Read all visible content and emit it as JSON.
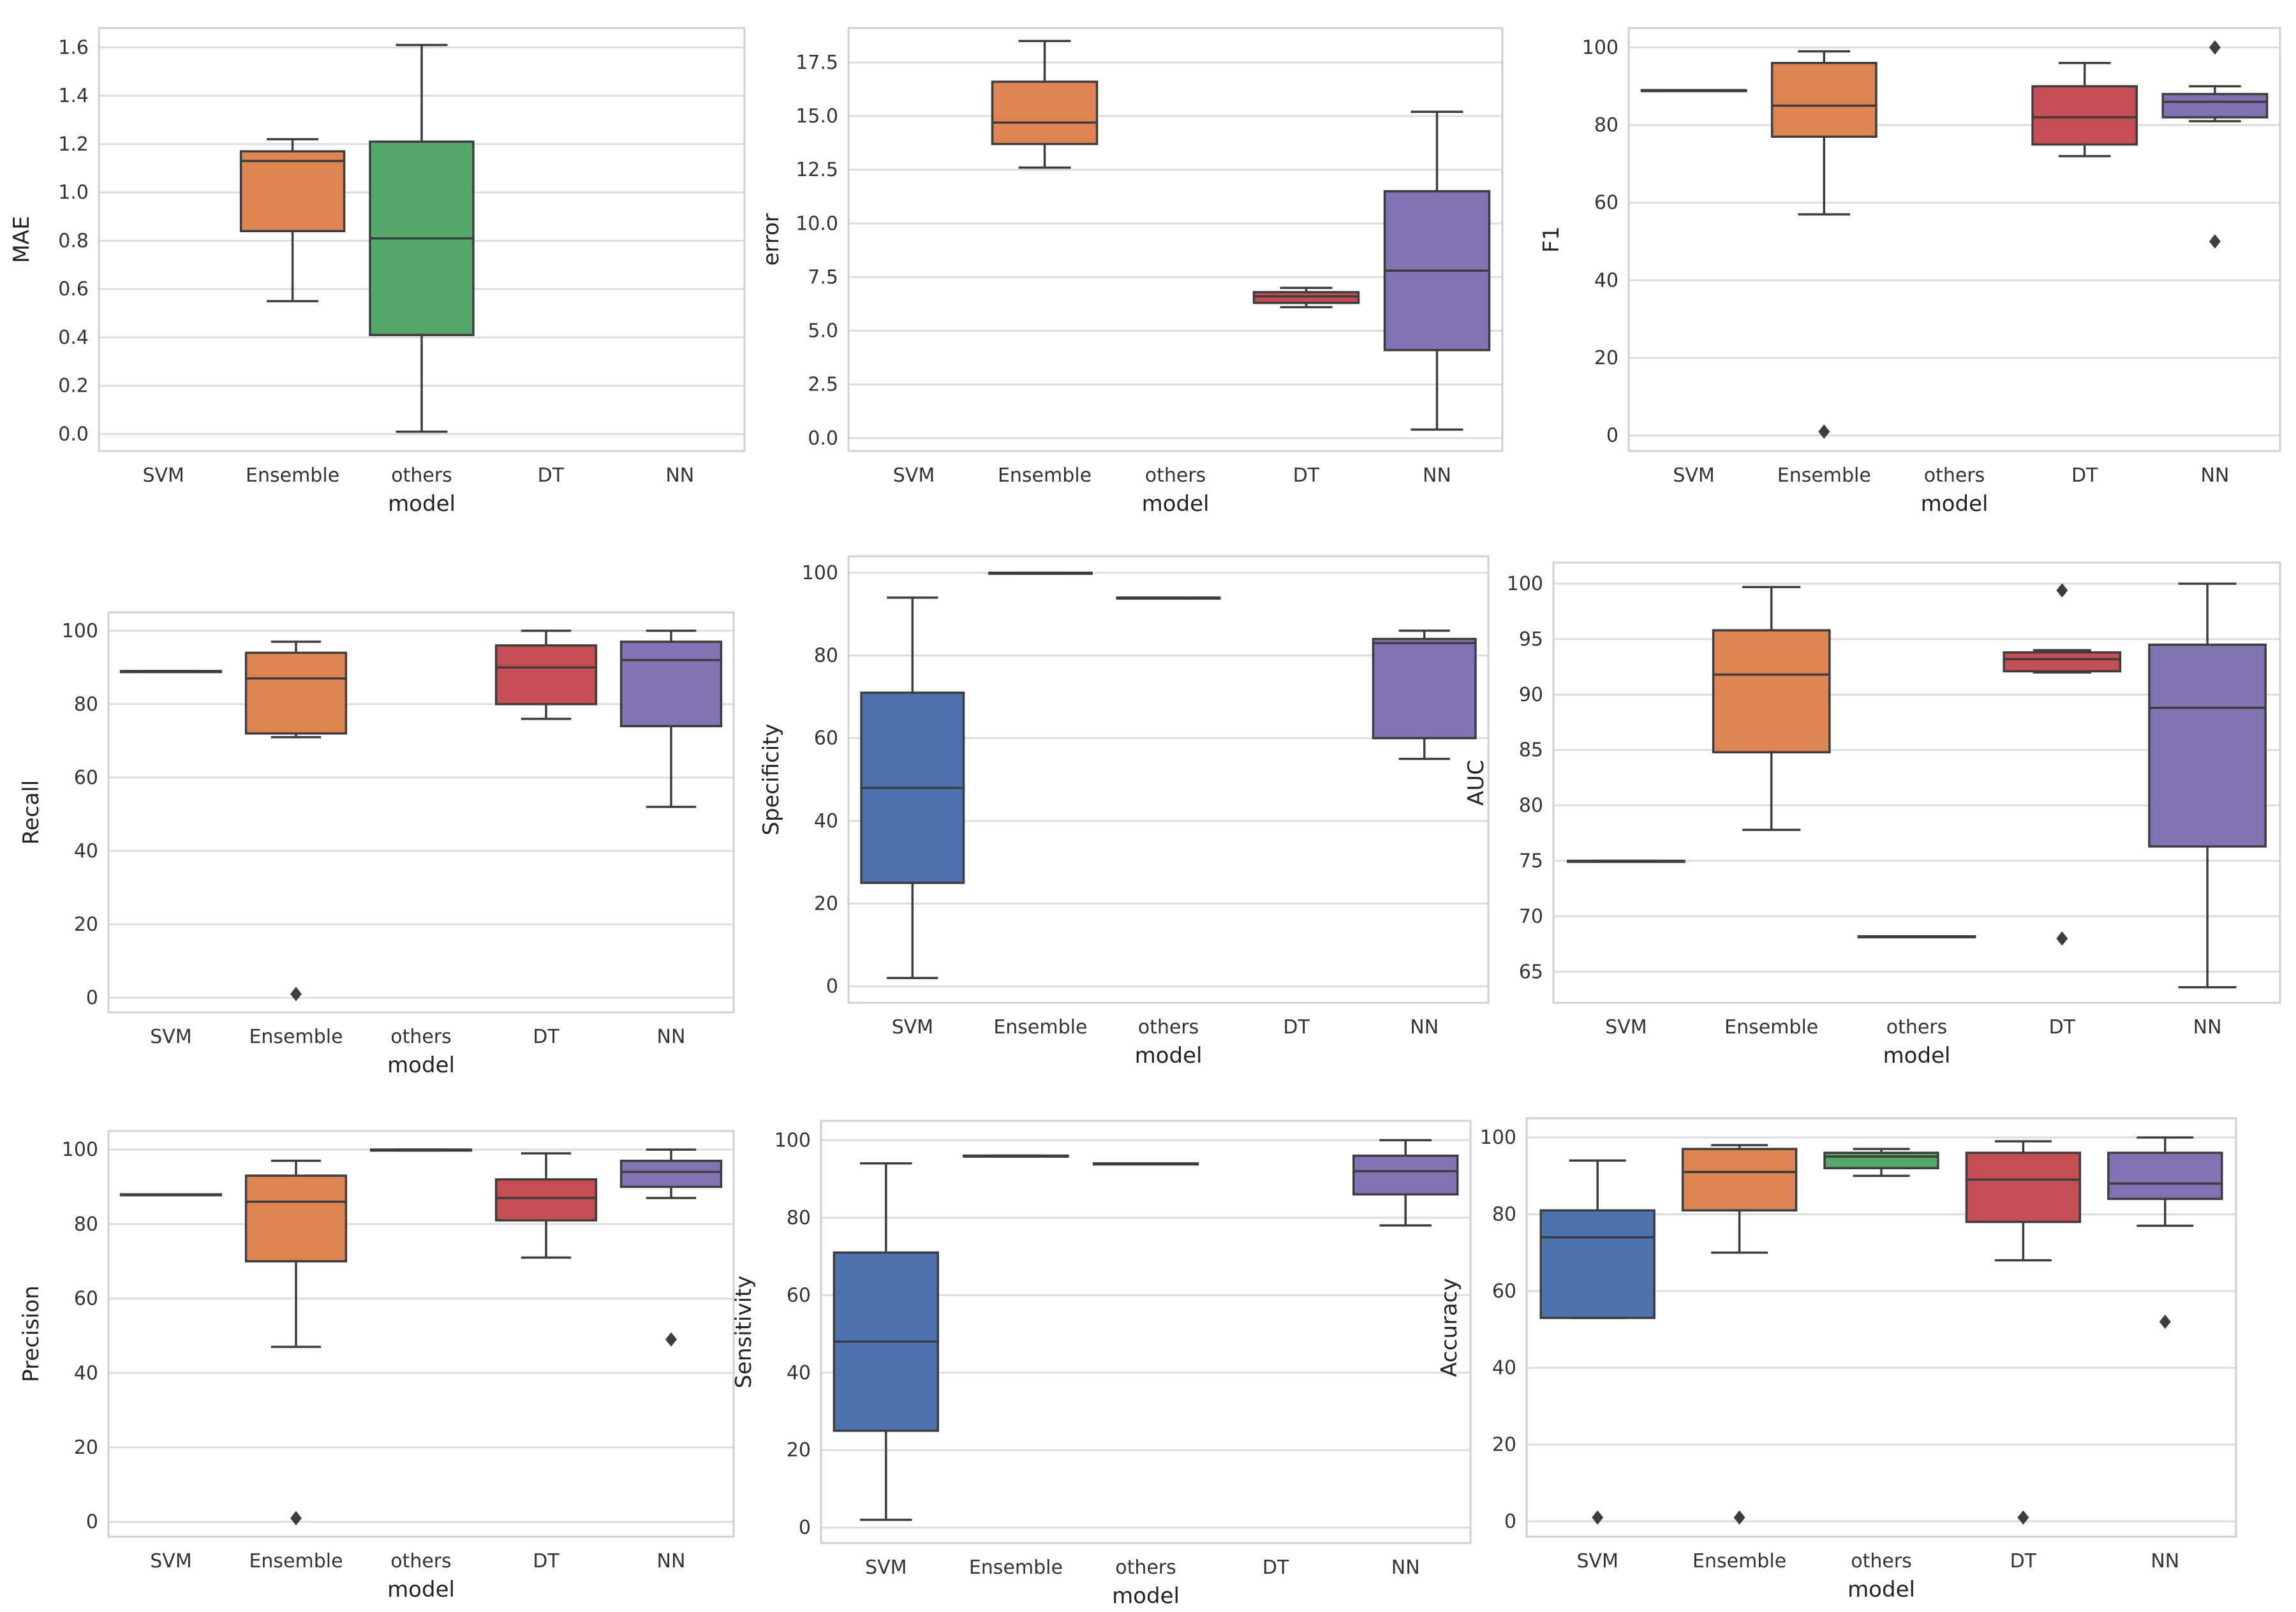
{
  "chart_data": [
    {
      "type": "box",
      "ylabel": "MAE",
      "xlabel": "model",
      "categories": [
        "SVM",
        "Ensemble",
        "others",
        "DT",
        "NN"
      ],
      "ylim": [
        -0.07,
        1.68
      ],
      "yticks": [
        0.0,
        0.2,
        0.4,
        0.6,
        0.8,
        1.0,
        1.2,
        1.4,
        1.6
      ],
      "tick_decimals": 1,
      "grid": true,
      "boxes": [
        {
          "category": "Ensemble",
          "color": "#dd8452",
          "min": 0.55,
          "q1": 0.84,
          "median": 1.13,
          "q3": 1.17,
          "max": 1.22,
          "outliers": []
        },
        {
          "category": "others",
          "color": "#55a868",
          "min": 0.01,
          "q1": 0.41,
          "median": 0.81,
          "q3": 1.21,
          "max": 1.61,
          "outliers": []
        }
      ]
    },
    {
      "type": "box",
      "ylabel": "error",
      "xlabel": "model",
      "categories": [
        "SVM",
        "Ensemble",
        "others",
        "DT",
        "NN"
      ],
      "ylim": [
        -0.6,
        19.1
      ],
      "yticks": [
        0.0,
        2.5,
        5.0,
        7.5,
        10.0,
        12.5,
        15.0,
        17.5
      ],
      "tick_decimals": 1,
      "grid": true,
      "boxes": [
        {
          "category": "Ensemble",
          "color": "#dd8452",
          "min": 12.6,
          "q1": 13.7,
          "median": 14.7,
          "q3": 16.6,
          "max": 18.5,
          "outliers": []
        },
        {
          "category": "DT",
          "color": "#c44e52",
          "min": 6.1,
          "q1": 6.3,
          "median": 6.6,
          "q3": 6.8,
          "max": 7.0,
          "outliers": []
        },
        {
          "category": "NN",
          "color": "#8172b3",
          "min": 0.4,
          "q1": 4.1,
          "median": 7.8,
          "q3": 11.5,
          "max": 15.2,
          "outliers": []
        }
      ]
    },
    {
      "type": "box",
      "ylabel": "F1",
      "xlabel": "model",
      "categories": [
        "SVM",
        "Ensemble",
        "others",
        "DT",
        "NN"
      ],
      "ylim": [
        -4,
        105
      ],
      "yticks": [
        0,
        20,
        40,
        60,
        80,
        100
      ],
      "tick_decimals": 0,
      "grid": true,
      "boxes": [
        {
          "category": "SVM",
          "color": "#4c72b0",
          "min": 89,
          "q1": 89,
          "median": 89,
          "q3": 89,
          "max": 89,
          "outliers": []
        },
        {
          "category": "Ensemble",
          "color": "#dd8452",
          "min": 57,
          "q1": 77,
          "median": 85,
          "q3": 96,
          "max": 99,
          "outliers": [
            1
          ]
        },
        {
          "category": "DT",
          "color": "#c44e52",
          "min": 72,
          "q1": 75,
          "median": 82,
          "q3": 90,
          "max": 96,
          "outliers": []
        },
        {
          "category": "NN",
          "color": "#8172b3",
          "min": 81,
          "q1": 82,
          "median": 86,
          "q3": 88,
          "max": 90,
          "outliers": [
            100,
            50
          ]
        }
      ]
    },
    {
      "type": "box",
      "ylabel": "Recall",
      "xlabel": "model",
      "categories": [
        "SVM",
        "Ensemble",
        "others",
        "DT",
        "NN"
      ],
      "ylim": [
        -4,
        105
      ],
      "yticks": [
        0,
        20,
        40,
        60,
        80,
        100
      ],
      "tick_decimals": 0,
      "grid": true,
      "boxes": [
        {
          "category": "SVM",
          "color": "#4c72b0",
          "min": 89,
          "q1": 89,
          "median": 89,
          "q3": 89,
          "max": 89,
          "outliers": []
        },
        {
          "category": "Ensemble",
          "color": "#dd8452",
          "min": 71,
          "q1": 72,
          "median": 87,
          "q3": 94,
          "max": 97,
          "outliers": [
            1
          ]
        },
        {
          "category": "DT",
          "color": "#c44e52",
          "min": 76,
          "q1": 80,
          "median": 90,
          "q3": 96,
          "max": 100,
          "outliers": []
        },
        {
          "category": "NN",
          "color": "#8172b3",
          "min": 52,
          "q1": 74,
          "median": 92,
          "q3": 97,
          "max": 100,
          "outliers": []
        }
      ]
    },
    {
      "type": "box",
      "ylabel": "Specificity",
      "xlabel": "model",
      "categories": [
        "SVM",
        "Ensemble",
        "others",
        "DT",
        "NN"
      ],
      "ylim": [
        -4,
        104
      ],
      "yticks": [
        0,
        20,
        40,
        60,
        80,
        100
      ],
      "tick_decimals": 0,
      "grid": true,
      "boxes": [
        {
          "category": "SVM",
          "color": "#4c72b0",
          "min": 2,
          "q1": 25,
          "median": 48,
          "q3": 71,
          "max": 94,
          "outliers": []
        },
        {
          "category": "Ensemble",
          "color": "#dd8452",
          "min": 100,
          "q1": 100,
          "median": 100,
          "q3": 100,
          "max": 100,
          "outliers": []
        },
        {
          "category": "others",
          "color": "#55a868",
          "min": 94,
          "q1": 94,
          "median": 94,
          "q3": 94,
          "max": 94,
          "outliers": []
        },
        {
          "category": "NN",
          "color": "#8172b3",
          "min": 55,
          "q1": 60,
          "median": 83,
          "q3": 84,
          "max": 86,
          "outliers": []
        }
      ]
    },
    {
      "type": "box",
      "ylabel": "AUC",
      "xlabel": "model",
      "categories": [
        "SVM",
        "Ensemble",
        "others",
        "DT",
        "NN"
      ],
      "ylim": [
        62.2,
        101.9
      ],
      "yticks": [
        65,
        70,
        75,
        80,
        85,
        90,
        95,
        100
      ],
      "tick_decimals": 0,
      "grid": true,
      "boxes": [
        {
          "category": "SVM",
          "color": "#4c72b0",
          "min": 75,
          "q1": 75,
          "median": 75,
          "q3": 75,
          "max": 75,
          "outliers": []
        },
        {
          "category": "Ensemble",
          "color": "#dd8452",
          "min": 77.8,
          "q1": 84.8,
          "median": 91.8,
          "q3": 95.8,
          "max": 99.7,
          "outliers": []
        },
        {
          "category": "others",
          "color": "#55a868",
          "min": 68.2,
          "q1": 68.2,
          "median": 68.2,
          "q3": 68.2,
          "max": 68.2,
          "outliers": []
        },
        {
          "category": "DT",
          "color": "#c44e52",
          "min": 92,
          "q1": 92.1,
          "median": 93.2,
          "q3": 93.8,
          "max": 94,
          "outliers": [
            99.4,
            68
          ]
        },
        {
          "category": "NN",
          "color": "#8172b3",
          "min": 63.6,
          "q1": 76.3,
          "median": 88.8,
          "q3": 94.5,
          "max": 100,
          "outliers": []
        }
      ]
    },
    {
      "type": "box",
      "ylabel": "Precision",
      "xlabel": "model",
      "categories": [
        "SVM",
        "Ensemble",
        "others",
        "DT",
        "NN"
      ],
      "ylim": [
        -4,
        105
      ],
      "yticks": [
        0,
        20,
        40,
        60,
        80,
        100
      ],
      "tick_decimals": 0,
      "grid": true,
      "boxes": [
        {
          "category": "SVM",
          "color": "#4c72b0",
          "min": 88,
          "q1": 88,
          "median": 88,
          "q3": 88,
          "max": 88,
          "outliers": []
        },
        {
          "category": "Ensemble",
          "color": "#dd8452",
          "min": 47,
          "q1": 70,
          "median": 86,
          "q3": 93,
          "max": 97,
          "outliers": [
            1
          ]
        },
        {
          "category": "others",
          "color": "#55a868",
          "min": 100,
          "q1": 100,
          "median": 100,
          "q3": 100,
          "max": 100,
          "outliers": []
        },
        {
          "category": "DT",
          "color": "#c44e52",
          "min": 71,
          "q1": 81,
          "median": 87,
          "q3": 92,
          "max": 99,
          "outliers": []
        },
        {
          "category": "NN",
          "color": "#8172b3",
          "min": 87,
          "q1": 90,
          "median": 94,
          "q3": 97,
          "max": 100,
          "outliers": [
            49
          ]
        }
      ]
    },
    {
      "type": "box",
      "ylabel": "Sensitivity",
      "xlabel": "model",
      "categories": [
        "SVM",
        "Ensemble",
        "others",
        "DT",
        "NN"
      ],
      "ylim": [
        -4,
        105
      ],
      "yticks": [
        0,
        20,
        40,
        60,
        80,
        100
      ],
      "tick_decimals": 0,
      "grid": true,
      "boxes": [
        {
          "category": "SVM",
          "color": "#4c72b0",
          "min": 2,
          "q1": 25,
          "median": 48,
          "q3": 71,
          "max": 94,
          "outliers": []
        },
        {
          "category": "Ensemble",
          "color": "#dd8452",
          "min": 96,
          "q1": 96,
          "median": 96,
          "q3": 96,
          "max": 96,
          "outliers": []
        },
        {
          "category": "others",
          "color": "#55a868",
          "min": 94,
          "q1": 94,
          "median": 94,
          "q3": 94,
          "max": 94,
          "outliers": []
        },
        {
          "category": "NN",
          "color": "#8172b3",
          "min": 78,
          "q1": 86,
          "median": 92,
          "q3": 96,
          "max": 100,
          "outliers": []
        }
      ]
    },
    {
      "type": "box",
      "ylabel": "Accuracy",
      "xlabel": "model",
      "categories": [
        "SVM",
        "Ensemble",
        "others",
        "DT",
        "NN"
      ],
      "ylim": [
        -4,
        105
      ],
      "yticks": [
        0,
        20,
        40,
        60,
        80,
        100
      ],
      "tick_decimals": 0,
      "grid": true,
      "boxes": [
        {
          "category": "SVM",
          "color": "#4c72b0",
          "min": 53,
          "q1": 53,
          "median": 74,
          "q3": 81,
          "max": 94,
          "outliers": [
            1
          ]
        },
        {
          "category": "Ensemble",
          "color": "#dd8452",
          "min": 70,
          "q1": 81,
          "median": 91,
          "q3": 97,
          "max": 98,
          "outliers": [
            1
          ]
        },
        {
          "category": "others",
          "color": "#55a868",
          "min": 90,
          "q1": 92,
          "median": 95,
          "q3": 96,
          "max": 97,
          "outliers": []
        },
        {
          "category": "DT",
          "color": "#c44e52",
          "min": 68,
          "q1": 78,
          "median": 89,
          "q3": 96,
          "max": 99,
          "outliers": [
            1
          ]
        },
        {
          "category": "NN",
          "color": "#8172b3",
          "min": 77,
          "q1": 84,
          "median": 88,
          "q3": 96,
          "max": 100,
          "outliers": [
            52
          ]
        }
      ]
    }
  ]
}
